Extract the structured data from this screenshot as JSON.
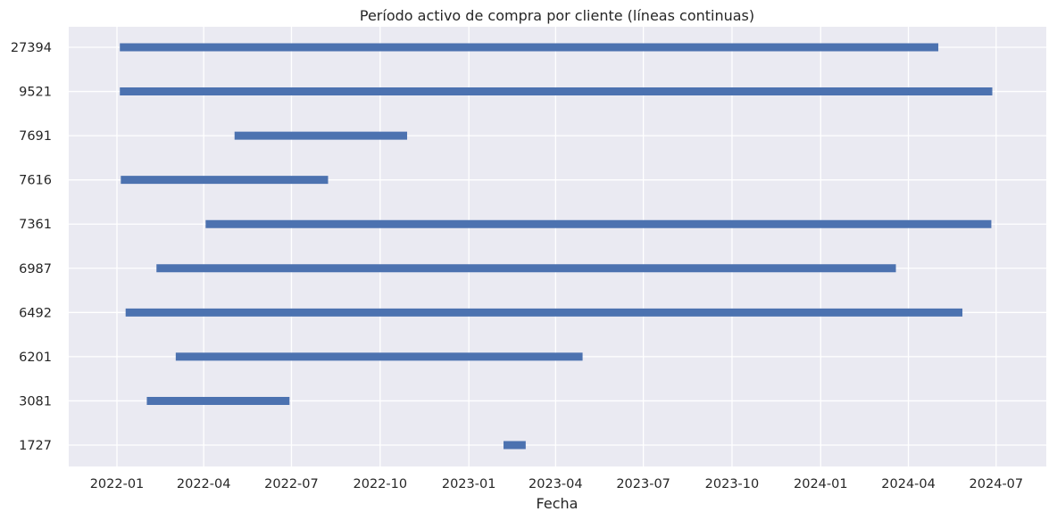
{
  "chart_data": {
    "type": "gantt",
    "title": "Período activo de compra por cliente (líneas continuas)",
    "xlabel": "Fecha",
    "ylabel": "",
    "grid": true,
    "legend": "none",
    "colors": {
      "background": "#eaeaf2",
      "grid": "#ffffff",
      "bar": "#4c72b0",
      "text": "#262626"
    },
    "xlim": [
      "2021-11-12",
      "2024-08-22"
    ],
    "x_ticks": [
      "2022-01-01",
      "2022-04-01",
      "2022-07-01",
      "2022-10-01",
      "2023-01-01",
      "2023-04-01",
      "2023-07-01",
      "2023-10-01",
      "2024-01-01",
      "2024-04-01",
      "2024-07-01"
    ],
    "x_tick_labels": [
      "2022-01",
      "2022-04",
      "2022-07",
      "2022-10",
      "2023-01",
      "2023-04",
      "2023-07",
      "2023-10",
      "2024-01",
      "2024-04",
      "2024-07"
    ],
    "categories": [
      "1727",
      "3081",
      "6201",
      "6492",
      "6987",
      "7361",
      "7616",
      "7691",
      "9521",
      "27394"
    ],
    "series": [
      {
        "data": [
          {
            "customer": "1727",
            "start": "2023-02-06",
            "end": "2023-03-01"
          },
          {
            "customer": "3081",
            "start": "2022-02-01",
            "end": "2022-06-29"
          },
          {
            "customer": "6201",
            "start": "2022-03-03",
            "end": "2023-04-29"
          },
          {
            "customer": "6492",
            "start": "2022-01-10",
            "end": "2024-05-27"
          },
          {
            "customer": "6987",
            "start": "2022-02-11",
            "end": "2024-03-19"
          },
          {
            "customer": "7361",
            "start": "2022-04-03",
            "end": "2024-06-26"
          },
          {
            "customer": "7616",
            "start": "2022-01-05",
            "end": "2022-08-08"
          },
          {
            "customer": "7691",
            "start": "2022-05-03",
            "end": "2022-10-29"
          },
          {
            "customer": "9521",
            "start": "2022-01-04",
            "end": "2024-06-27"
          },
          {
            "customer": "27394",
            "start": "2022-01-04",
            "end": "2024-05-02"
          }
        ]
      }
    ]
  }
}
